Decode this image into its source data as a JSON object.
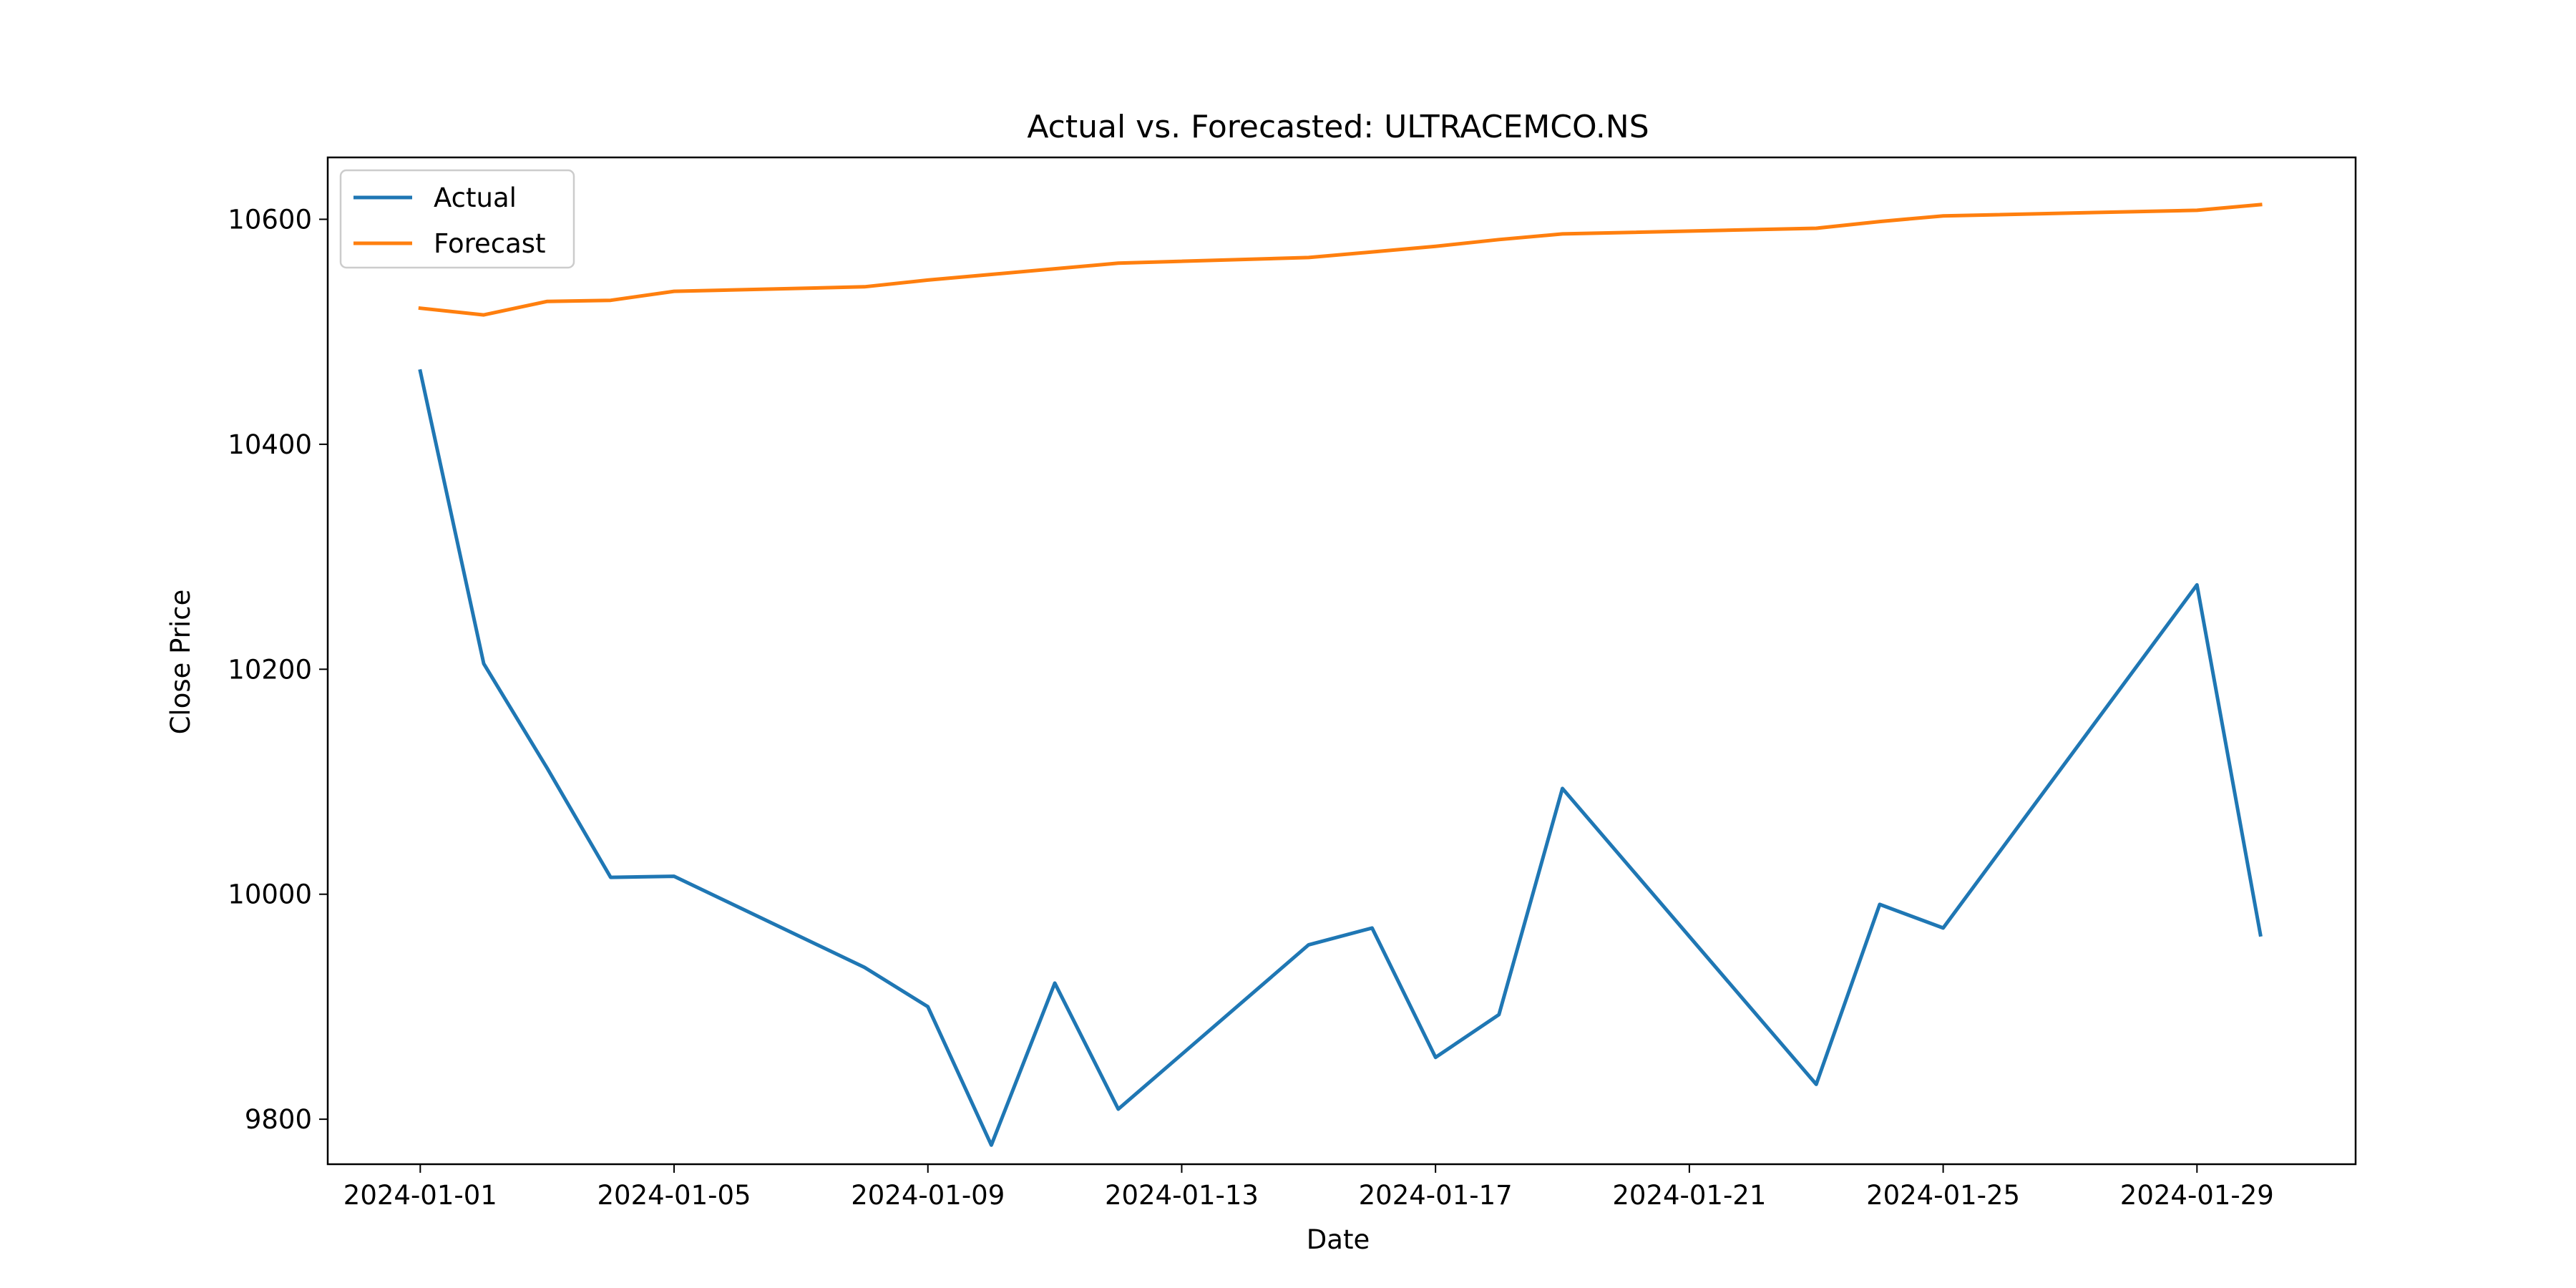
{
  "chart_data": {
    "type": "line",
    "title": "Actual vs. Forecasted: ULTRACEMCO.NS",
    "xlabel": "Date",
    "ylabel": "Close Price",
    "x_tick_labels": [
      "2024-01-01",
      "2024-01-05",
      "2024-01-09",
      "2024-01-13",
      "2024-01-17",
      "2024-01-21",
      "2024-01-25",
      "2024-01-29"
    ],
    "y_ticks": [
      9800,
      10000,
      10200,
      10400,
      10600
    ],
    "xlim": [
      "2023-12-30T13:00",
      "2024-01-31T12:00"
    ],
    "ylim": [
      9760,
      10655
    ],
    "grid": false,
    "legend_position": "top-left",
    "x": [
      "2024-01-01",
      "2024-01-02",
      "2024-01-03",
      "2024-01-04",
      "2024-01-05",
      "2024-01-08",
      "2024-01-09",
      "2024-01-10",
      "2024-01-11",
      "2024-01-12",
      "2024-01-15",
      "2024-01-16",
      "2024-01-17",
      "2024-01-18",
      "2024-01-19",
      "2024-01-23",
      "2024-01-24",
      "2024-01-25",
      "2024-01-29",
      "2024-01-30"
    ],
    "series": [
      {
        "name": "Actual",
        "color": "#1f77b4",
        "values": [
          10465,
          10205,
          10112,
          10015,
          10016,
          9935,
          9900,
          9777,
          9921,
          9809,
          9955,
          9970,
          9855,
          9893,
          10094,
          9831,
          9991,
          9970,
          10275,
          9964
        ]
      },
      {
        "name": "Forecast",
        "color": "#ff7f0e",
        "values": [
          10521,
          10515,
          10527,
          10528,
          10536,
          10540,
          10546,
          10551,
          10556,
          10561,
          10566,
          10571,
          10576,
          10582,
          10587,
          10592,
          10598,
          10603,
          10608,
          10613
        ]
      }
    ]
  }
}
